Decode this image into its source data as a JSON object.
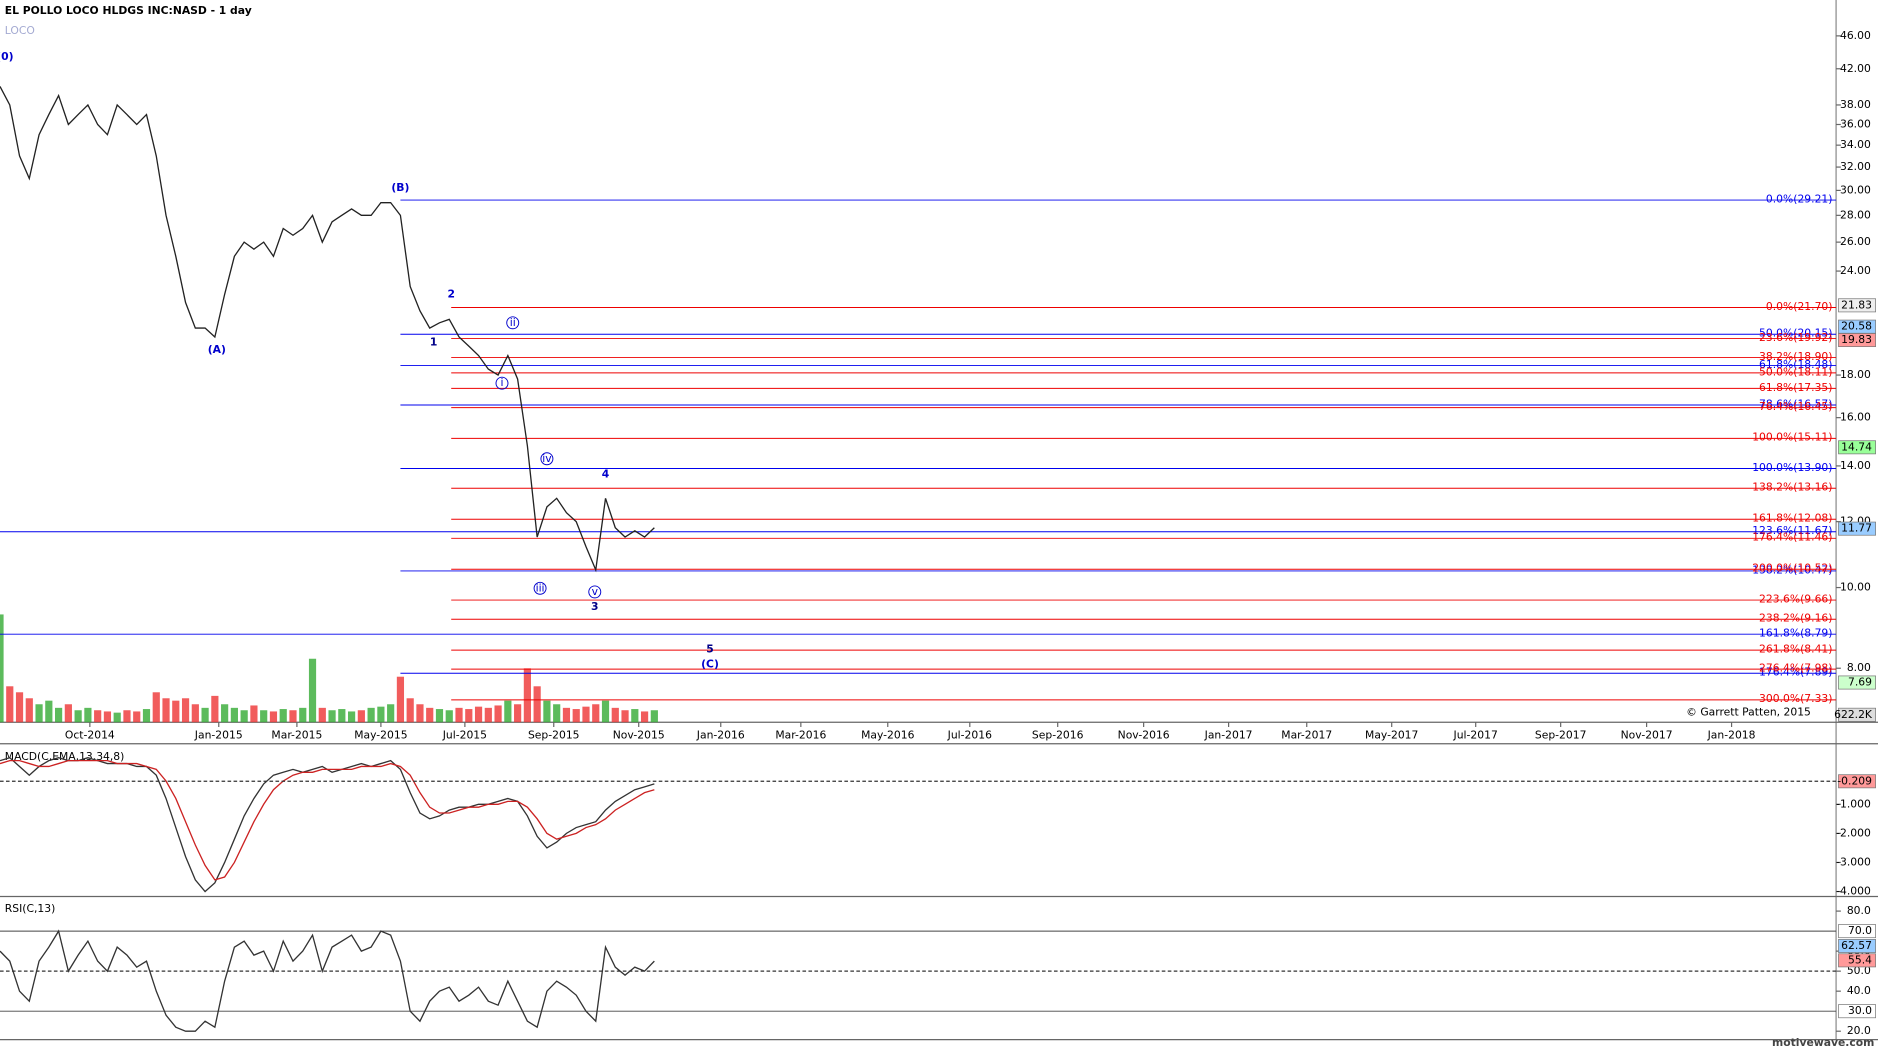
{
  "header": {
    "title": "EL POLLO LOCO HLDGS INC:NASD - 1 day",
    "symbol": "LOCO"
  },
  "footer": {
    "copyright": "© Garrett Patten, 2015",
    "watermark": "motivewave.com"
  },
  "chart_data": [
    {
      "type": "line",
      "log": true,
      "color": "#222222",
      "xlim": [
        0,
        188
      ],
      "xticks": [
        {
          "value": 9.2,
          "label": "Oct-2014"
        },
        {
          "value": 22.4,
          "label": "Jan-2015"
        },
        {
          "value": 30.4,
          "label": "Mar-2015"
        },
        {
          "value": 39,
          "label": "May-2015"
        },
        {
          "value": 47.6,
          "label": "Jul-2015"
        },
        {
          "value": 56.7,
          "label": "Sep-2015"
        },
        {
          "value": 65.4,
          "label": "Nov-2015"
        },
        {
          "value": 73.8,
          "label": "Jan-2016"
        },
        {
          "value": 82,
          "label": "Mar-2016"
        },
        {
          "value": 90.9,
          "label": "May-2016"
        },
        {
          "value": 99.3,
          "label": "Jul-2016"
        },
        {
          "value": 108.3,
          "label": "Sep-2016"
        },
        {
          "value": 117.1,
          "label": "Nov-2016"
        },
        {
          "value": 125.8,
          "label": "Jan-2017"
        },
        {
          "value": 133.8,
          "label": "Mar-2017"
        },
        {
          "value": 142.5,
          "label": "May-2017"
        },
        {
          "value": 151.1,
          "label": "Jul-2017"
        },
        {
          "value": 159.8,
          "label": "Sep-2017"
        },
        {
          "value": 168.6,
          "label": "Nov-2017"
        },
        {
          "value": 177.3,
          "label": "Jan-2018"
        }
      ],
      "ylim": [
        6.89,
        50.8
      ],
      "yticks": [
        {
          "value": 46,
          "label": "46.00"
        },
        {
          "value": 42,
          "label": "42.00"
        },
        {
          "value": 38,
          "label": "38.00"
        },
        {
          "value": 36,
          "label": "36.00"
        },
        {
          "value": 34,
          "label": "34.00"
        },
        {
          "value": 32,
          "label": "32.00"
        },
        {
          "value": 30,
          "label": "30.00"
        },
        {
          "value": 28,
          "label": "28.00"
        },
        {
          "value": 26,
          "label": "26.00"
        },
        {
          "value": 24,
          "label": "24.00"
        },
        {
          "value": 18,
          "label": "18.00"
        },
        {
          "value": 16,
          "label": "16.00"
        },
        {
          "value": 14,
          "label": "14.00"
        },
        {
          "value": 12,
          "label": "12.00"
        },
        {
          "value": 10,
          "label": "10.00"
        },
        {
          "value": 8,
          "label": "8.00"
        }
      ],
      "x": [
        0,
        1,
        2,
        3,
        4,
        5,
        6,
        7,
        8,
        9,
        10,
        11,
        12,
        13,
        14,
        15,
        16,
        17,
        18,
        19,
        20,
        21,
        22,
        23,
        24,
        25,
        26,
        27,
        28,
        29,
        30,
        31,
        32,
        33,
        34,
        35,
        36,
        37,
        38,
        39,
        40,
        41,
        42,
        43,
        44,
        45,
        46,
        47,
        48,
        49,
        50,
        51,
        52,
        53,
        54,
        55,
        56,
        57,
        58,
        59,
        60,
        61,
        62,
        63,
        64,
        65,
        66,
        67
      ],
      "values": [
        40,
        38,
        33,
        31,
        35,
        37,
        39,
        36,
        37,
        38,
        36,
        35,
        38,
        37,
        36,
        37,
        33,
        28,
        25,
        22,
        20.5,
        20.5,
        20,
        22.5,
        25,
        26,
        25.5,
        26,
        25,
        27,
        26.5,
        27,
        28,
        26,
        27.5,
        28,
        28.5,
        28,
        28,
        29,
        29,
        28,
        23,
        21.5,
        20.5,
        20.8,
        21,
        20,
        19.5,
        19,
        18.3,
        18,
        19,
        17.8,
        14.8,
        11.5,
        12.5,
        12.8,
        12.3,
        12,
        11.2,
        10.5,
        12.8,
        11.8,
        11.5,
        11.7,
        11.5,
        11.8
      ],
      "volume": {
        "lim": [
          0,
          10000
        ],
        "up_color": "#33aa33",
        "down_color": "#ee3333",
        "values": [
          9000,
          3000,
          2500,
          2000,
          1500,
          1800,
          1200,
          1500,
          1000,
          1200,
          1000,
          900,
          800,
          1000,
          900,
          1100,
          2500,
          2000,
          1800,
          2000,
          1500,
          1200,
          2200,
          1500,
          1200,
          1000,
          1400,
          1000,
          900,
          1100,
          1000,
          1200,
          5300,
          1200,
          1000,
          1100,
          900,
          1000,
          1200,
          1300,
          1500,
          3800,
          2000,
          1500,
          1200,
          1100,
          1000,
          1200,
          1100,
          1300,
          1200,
          1400,
          1800,
          1500,
          4500,
          3000,
          1800,
          1500,
          1200,
          1100,
          1300,
          1500,
          1800,
          1200,
          1000,
          1100,
          900,
          1000
        ],
        "marker": {
          "value": 622.2,
          "label": "622.2K",
          "color": "#dddddd"
        }
      },
      "fib_levels": [
        {
          "value": 29.21,
          "label": "0.0%(29.21)",
          "color": "#0000ee",
          "from": 41
        },
        {
          "value": 20.15,
          "label": "50.0%(20.15)",
          "color": "#0000ee",
          "from": 41
        },
        {
          "value": 18.48,
          "label": "61.8%(18.48)",
          "color": "#0000ee",
          "from": 41
        },
        {
          "value": 16.57,
          "label": "78.6%(16.57)",
          "color": "#0000ee",
          "from": 41
        },
        {
          "value": 13.9,
          "label": "100.0%(13.90)",
          "color": "#0000ee",
          "from": 41
        },
        {
          "value": 11.67,
          "label": "123.6%(11.67)",
          "color": "#0000ee",
          "from": 0
        },
        {
          "value": 10.47,
          "label": "138.2%(10.47)",
          "color": "#0000ee",
          "from": 41
        },
        {
          "value": 8.79,
          "label": "161.8%(8.79)",
          "color": "#0000ee",
          "from": 0
        },
        {
          "value": 7.89,
          "label": "176.4%(7.89)",
          "color": "#0000ee",
          "from": 41
        },
        {
          "value": 21.7,
          "label": "0.0%(21.70)",
          "color": "#ee0000",
          "from": 46.2
        },
        {
          "value": 19.92,
          "label": "23.6%(19.92)",
          "color": "#ee0000",
          "from": 46.2
        },
        {
          "value": 18.9,
          "label": "38.2%(18.90)",
          "color": "#ee0000",
          "from": 46.2
        },
        {
          "value": 18.11,
          "label": "50.0%(18.11)",
          "color": "#ee0000",
          "from": 46.2
        },
        {
          "value": 17.35,
          "label": "61.8%(17.35)",
          "color": "#ee0000",
          "from": 46.2
        },
        {
          "value": 16.45,
          "label": "76.4%(16.45)",
          "color": "#ee0000",
          "from": 46.2
        },
        {
          "value": 15.11,
          "label": "100.0%(15.11)",
          "color": "#ee0000",
          "from": 46.2
        },
        {
          "value": 13.16,
          "label": "138.2%(13.16)",
          "color": "#ee0000",
          "from": 46.2
        },
        {
          "value": 12.08,
          "label": "161.8%(12.08)",
          "color": "#ee0000",
          "from": 46.2
        },
        {
          "value": 11.46,
          "label": "176.4%(11.46)",
          "color": "#ee0000",
          "from": 46.2
        },
        {
          "value": 10.52,
          "label": "200.0%(10.52)",
          "color": "#ee0000",
          "from": 46.2
        },
        {
          "value": 9.66,
          "label": "223.6%(9.66)",
          "color": "#ee0000",
          "from": 46.2
        },
        {
          "value": 9.16,
          "label": "238.2%(9.16)",
          "color": "#ee0000",
          "from": 46.2
        },
        {
          "value": 8.41,
          "label": "261.8%(8.41)",
          "color": "#ee0000",
          "from": 46.2
        },
        {
          "value": 7.98,
          "label": "276.4%(7.98)",
          "color": "#ee0000",
          "from": 46.2
        },
        {
          "value": 7.33,
          "label": "300.0%(7.33)",
          "color": "#ee0000",
          "from": 46.2
        }
      ],
      "price_markers": [
        {
          "value": 21.83,
          "color": "#eeeeee"
        },
        {
          "value": 20.58,
          "color": "#99ccff"
        },
        {
          "value": 19.83,
          "color": "#ff9999"
        },
        {
          "value": 14.74,
          "color": "#99ff99"
        },
        {
          "value": 11.77,
          "color": "#99ccff"
        },
        {
          "value": 7.69,
          "color": "#ccffcc"
        }
      ],
      "annotations": [
        {
          "text": "(0)",
          "x": 0.5,
          "y": 43.4,
          "color": "#0000cc",
          "circled": false
        },
        {
          "text": "(A)",
          "x": 22.2,
          "y": 19.3,
          "color": "#0000cc",
          "circled": false
        },
        {
          "text": "(B)",
          "x": 41,
          "y": 30.2,
          "color": "#0000cc",
          "circled": false
        },
        {
          "text": "1",
          "x": 44.4,
          "y": 19.7,
          "color": "#000088",
          "circled": false
        },
        {
          "text": "2",
          "x": 46.2,
          "y": 22.5,
          "color": "#0000cc",
          "circled": false
        },
        {
          "text": "i",
          "x": 51.4,
          "y": 17.6,
          "color": "#0000cc",
          "circled": true
        },
        {
          "text": "ii",
          "x": 52.5,
          "y": 20.8,
          "color": "#0000cc",
          "circled": true
        },
        {
          "text": "iii",
          "x": 55.3,
          "y": 9.98,
          "color": "#0000cc",
          "circled": true
        },
        {
          "text": "iv",
          "x": 56,
          "y": 14.28,
          "color": "#0000cc",
          "circled": true
        },
        {
          "text": "v",
          "x": 60.9,
          "y": 9.88,
          "color": "#0000cc",
          "circled": true
        },
        {
          "text": "3",
          "x": 60.9,
          "y": 9.47,
          "color": "#000088",
          "circled": false
        },
        {
          "text": "4",
          "x": 62,
          "y": 13.68,
          "color": "#0000cc",
          "circled": false
        },
        {
          "text": "5",
          "x": 72.7,
          "y": 8.43,
          "color": "#000088",
          "circled": false
        },
        {
          "text": "(C)",
          "x": 72.7,
          "y": 8.08,
          "color": "#0000cc",
          "circled": false
        }
      ]
    },
    {
      "type": "line",
      "title": "MACD(C,EMA,13,34,8)",
      "ylim": [
        -4.17,
        1.08
      ],
      "yticks": [
        {
          "value": -1,
          "label": "-1.000"
        },
        {
          "value": -2,
          "label": "-2.000"
        },
        {
          "value": -3,
          "label": "-3.000"
        },
        {
          "value": -4,
          "label": "-4.000"
        }
      ],
      "series": [
        {
          "color": "#333333",
          "values": [
            0.5,
            0.6,
            0.3,
            0,
            0.3,
            0.5,
            0.6,
            0.5,
            0.5,
            0.6,
            0.5,
            0.4,
            0.4,
            0.4,
            0.3,
            0.3,
            0,
            -0.8,
            -1.8,
            -2.8,
            -3.6,
            -4,
            -3.7,
            -3,
            -2.2,
            -1.4,
            -0.8,
            -0.3,
            0,
            0.1,
            0.2,
            0.1,
            0.2,
            0.3,
            0.1,
            0.2,
            0.3,
            0.4,
            0.3,
            0.4,
            0.5,
            0.2,
            -0.6,
            -1.3,
            -1.5,
            -1.4,
            -1.2,
            -1.1,
            -1.1,
            -1.0,
            -1.0,
            -0.9,
            -0.8,
            -0.9,
            -1.4,
            -2.1,
            -2.5,
            -2.3,
            -2.0,
            -1.8,
            -1.7,
            -1.6,
            -1.2,
            -0.9,
            -0.7,
            -0.5,
            -0.4,
            -0.3
          ]
        },
        {
          "color": "#cc2222",
          "values": [
            0.4,
            0.5,
            0.5,
            0.4,
            0.3,
            0.3,
            0.4,
            0.5,
            0.5,
            0.5,
            0.5,
            0.5,
            0.4,
            0.4,
            0.4,
            0.3,
            0.2,
            -0.2,
            -0.8,
            -1.6,
            -2.4,
            -3.1,
            -3.6,
            -3.5,
            -3,
            -2.3,
            -1.6,
            -1,
            -0.5,
            -0.2,
            0,
            0.1,
            0.1,
            0.2,
            0.2,
            0.2,
            0.2,
            0.3,
            0.3,
            0.3,
            0.4,
            0.3,
            0,
            -0.6,
            -1.1,
            -1.3,
            -1.3,
            -1.2,
            -1.1,
            -1.1,
            -1.0,
            -1.0,
            -0.9,
            -0.9,
            -1.1,
            -1.5,
            -2.0,
            -2.2,
            -2.1,
            -2.0,
            -1.8,
            -1.7,
            -1.5,
            -1.2,
            -1.0,
            -0.8,
            -0.6,
            -0.5
          ]
        }
      ],
      "markers": [
        {
          "value": -0.209,
          "color": "#ff9999",
          "dashed": true
        }
      ]
    },
    {
      "type": "line",
      "title": "RSI(C,13)",
      "ylim": [
        15.8,
        87.3
      ],
      "yticks": [
        {
          "value": 80,
          "label": "80.0"
        },
        {
          "value": 60,
          "label": "60.0"
        },
        {
          "value": 50,
          "label": "50.0"
        },
        {
          "value": 40,
          "label": "40.0"
        },
        {
          "value": 20,
          "label": "20.0"
        }
      ],
      "levels": [
        {
          "value": 70,
          "label": "70.0"
        },
        {
          "value": 30,
          "label": "30.0"
        }
      ],
      "dashed_level": 50,
      "series": [
        {
          "color": "#333333",
          "values": [
            60,
            55,
            40,
            35,
            55,
            62,
            70,
            50,
            58,
            65,
            55,
            50,
            62,
            58,
            52,
            55,
            40,
            28,
            22,
            20,
            20,
            25,
            22,
            45,
            62,
            65,
            58,
            60,
            50,
            65,
            55,
            60,
            68,
            50,
            62,
            65,
            68,
            60,
            62,
            70,
            68,
            55,
            30,
            25,
            35,
            40,
            42,
            35,
            38,
            42,
            35,
            33,
            45,
            35,
            25,
            22,
            40,
            45,
            42,
            38,
            30,
            25,
            62,
            52,
            48,
            52,
            50,
            55
          ]
        }
      ],
      "markers": [
        {
          "value": 62.57,
          "color": "#99ccff",
          "dashed": false
        },
        {
          "value": 55.4,
          "color": "#ff9999",
          "dashed": false
        }
      ]
    }
  ]
}
